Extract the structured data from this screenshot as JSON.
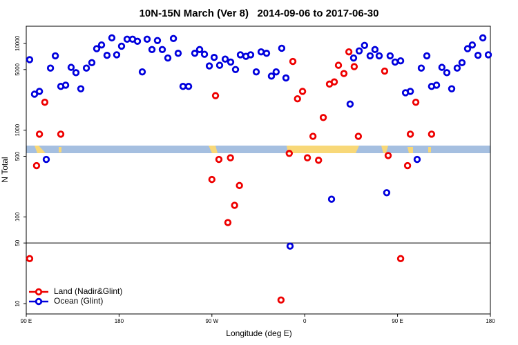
{
  "chart_data": {
    "type": "scatter",
    "title": "10N-15N March (Ver 8)   2014-09-06 to 2017-06-30",
    "x_label": "Longitude (deg E)",
    "y_label": "N Total",
    "log_y": true,
    "legend": "bottom-left",
    "reference_line": 50,
    "xlim": [
      90,
      540
    ],
    "xticks": [
      {
        "value": 90,
        "label": "90 E"
      },
      {
        "value": 180,
        "label": "180"
      },
      {
        "value": 270,
        "label": "90 W"
      },
      {
        "value": 360,
        "label": "0"
      },
      {
        "value": 450,
        "label": "90 E"
      },
      {
        "value": 540,
        "label": "180"
      }
    ],
    "ylim": [
      7.6,
      15800
    ],
    "yticks": [
      10,
      50,
      100,
      500,
      1000,
      5000,
      10000
    ],
    "series": [
      {
        "name": "Land (Nadir&Glint)",
        "color": "#ee0000",
        "x": [
          93.3,
          100,
          102.8,
          108,
          123.5,
          270,
          273.5,
          276.8,
          285.5,
          288,
          292,
          296.7,
          337,
          345,
          348.5,
          353,
          357.9,
          362.6,
          368,
          373.4,
          378,
          384,
          388.7,
          392.7,
          398,
          402.8,
          408,
          412,
          437.5,
          440.9,
          453,
          459.7,
          462.4,
          467.7,
          483
        ],
        "values": [
          33,
          390,
          900,
          2100,
          900,
          270,
          2500,
          460,
          86,
          480,
          136,
          230,
          11,
          540,
          6200,
          2300,
          2800,
          480,
          850,
          450,
          1400,
          3400,
          3600,
          5600,
          4500,
          8000,
          5400,
          850,
          4800,
          510,
          33,
          390,
          900,
          2100,
          900
        ]
      },
      {
        "name": "Ocean (Glint)",
        "color": "#0000dd",
        "x": [
          93.3,
          98,
          102.8,
          109.4,
          113.5,
          118.2,
          123.5,
          128.2,
          133.5,
          138.2,
          142.9,
          148.3,
          153.6,
          158.3,
          163,
          168.3,
          173,
          177.7,
          182.4,
          187.8,
          193.1,
          197.8,
          202.5,
          207.2,
          211.9,
          217.2,
          221.9,
          227.3,
          232.7,
          237.3,
          242,
          247.4,
          253.4,
          258.1,
          262.8,
          267.5,
          272.2,
          277.5,
          282.9,
          288.2,
          292.9,
          297.6,
          303,
          307.6,
          313,
          317.7,
          323,
          327.7,
          332.3,
          337.7,
          341.8,
          345.8,
          386,
          404,
          407.4,
          412.8,
          418,
          423.4,
          428.1,
          432.2,
          439.5,
          442.8,
          447.6,
          453,
          457.7,
          462.4,
          469,
          473,
          478.4,
          483,
          487.8,
          493,
          497.8,
          502.5,
          507.8,
          512.5,
          517.9,
          522.5,
          528,
          532.7,
          538
        ],
        "values": [
          6500,
          2600,
          2800,
          460,
          5200,
          7200,
          3200,
          3300,
          5300,
          4600,
          3000,
          5200,
          6000,
          8700,
          9600,
          7300,
          11600,
          7400,
          9300,
          11200,
          11200,
          10600,
          4700,
          11200,
          8500,
          10800,
          8500,
          6800,
          11400,
          7700,
          3200,
          3200,
          7700,
          8500,
          7500,
          5500,
          6900,
          5600,
          6600,
          6100,
          5000,
          7400,
          7100,
          7400,
          4700,
          8000,
          7700,
          4200,
          4700,
          8800,
          4000,
          46,
          160,
          2000,
          6800,
          8200,
          9500,
          7200,
          8500,
          7200,
          190,
          7200,
          6100,
          6300,
          2700,
          2800,
          460,
          5200,
          7200,
          3200,
          3300,
          5300,
          4600,
          3000,
          5200,
          6000,
          8700,
          9600,
          7300,
          11600,
          7400
        ]
      }
    ]
  }
}
